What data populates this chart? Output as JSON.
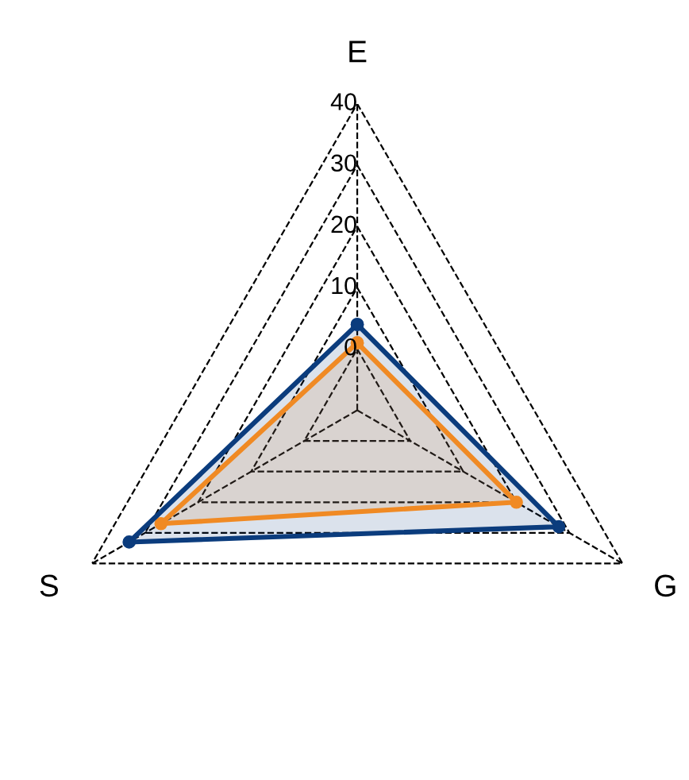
{
  "chart_data": {
    "type": "radar",
    "categories": [
      "E",
      "G",
      "S"
    ],
    "series": [
      {
        "color": "#f08a24",
        "values": [
          1,
          20,
          27
        ]
      },
      {
        "color": "#0b3c7d",
        "values": [
          4,
          28,
          33
        ]
      }
    ],
    "ylim": [
      -10,
      40
    ],
    "yticks": [
      0,
      10,
      20,
      30,
      40
    ],
    "grid": true,
    "marker": "circle",
    "line_style": "solid"
  }
}
